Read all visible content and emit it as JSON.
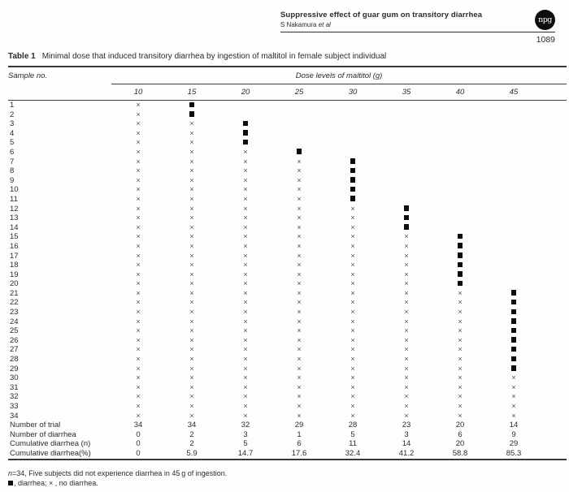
{
  "header": {
    "title": "Suppressive effect of guar gum on transitory diarrhea",
    "authors": "S Nakamura ",
    "authors_suffix": "et al",
    "logo_text": "npg",
    "page_number": "1089"
  },
  "table": {
    "label": "Table 1",
    "caption": "Minimal dose that induced transitory diarrhea by ingestion of maltitol in female subject individual",
    "col1_header": "Sample no.",
    "group_header": "Dose levels of maltitol (g)",
    "dose_headers": [
      "10",
      "15",
      "20",
      "25",
      "30",
      "35",
      "40",
      "45"
    ],
    "symbols": {
      "no_diarrhea": "×",
      "diarrhea": "■"
    },
    "rows": [
      {
        "no": "1",
        "marks": [
          "x",
          "d",
          "",
          "",
          "",
          "",
          "",
          ""
        ]
      },
      {
        "no": "2",
        "marks": [
          "x",
          "d",
          "",
          "",
          "",
          "",
          "",
          ""
        ]
      },
      {
        "no": "3",
        "marks": [
          "x",
          "x",
          "d",
          "",
          "",
          "",
          "",
          ""
        ]
      },
      {
        "no": "4",
        "marks": [
          "x",
          "x",
          "d",
          "",
          "",
          "",
          "",
          ""
        ]
      },
      {
        "no": "5",
        "marks": [
          "x",
          "x",
          "d",
          "",
          "",
          "",
          "",
          ""
        ]
      },
      {
        "no": "6",
        "marks": [
          "x",
          "x",
          "x",
          "d",
          "",
          "",
          "",
          ""
        ]
      },
      {
        "no": "7",
        "marks": [
          "x",
          "x",
          "x",
          "x",
          "d",
          "",
          "",
          ""
        ]
      },
      {
        "no": "8",
        "marks": [
          "x",
          "x",
          "x",
          "x",
          "d",
          "",
          "",
          ""
        ]
      },
      {
        "no": "9",
        "marks": [
          "x",
          "x",
          "x",
          "x",
          "d",
          "",
          "",
          ""
        ]
      },
      {
        "no": "10",
        "marks": [
          "x",
          "x",
          "x",
          "x",
          "d",
          "",
          "",
          ""
        ]
      },
      {
        "no": "11",
        "marks": [
          "x",
          "x",
          "x",
          "x",
          "d",
          "",
          "",
          ""
        ]
      },
      {
        "no": "12",
        "marks": [
          "x",
          "x",
          "x",
          "x",
          "x",
          "d",
          "",
          ""
        ]
      },
      {
        "no": "13",
        "marks": [
          "x",
          "x",
          "x",
          "x",
          "x",
          "d",
          "",
          ""
        ]
      },
      {
        "no": "14",
        "marks": [
          "x",
          "x",
          "x",
          "x",
          "x",
          "d",
          "",
          ""
        ]
      },
      {
        "no": "15",
        "marks": [
          "x",
          "x",
          "x",
          "x",
          "x",
          "x",
          "d",
          ""
        ]
      },
      {
        "no": "16",
        "marks": [
          "x",
          "x",
          "x",
          "x",
          "x",
          "x",
          "d",
          ""
        ]
      },
      {
        "no": "17",
        "marks": [
          "x",
          "x",
          "x",
          "x",
          "x",
          "x",
          "d",
          ""
        ]
      },
      {
        "no": "18",
        "marks": [
          "x",
          "x",
          "x",
          "x",
          "x",
          "x",
          "d",
          ""
        ]
      },
      {
        "no": "19",
        "marks": [
          "x",
          "x",
          "x",
          "x",
          "x",
          "x",
          "d",
          ""
        ]
      },
      {
        "no": "20",
        "marks": [
          "x",
          "x",
          "x",
          "x",
          "x",
          "x",
          "d",
          ""
        ]
      },
      {
        "no": "21",
        "marks": [
          "x",
          "x",
          "x",
          "x",
          "x",
          "x",
          "x",
          "d"
        ]
      },
      {
        "no": "22",
        "marks": [
          "x",
          "x",
          "x",
          "x",
          "x",
          "x",
          "x",
          "d"
        ]
      },
      {
        "no": "23",
        "marks": [
          "x",
          "x",
          "x",
          "x",
          "x",
          "x",
          "x",
          "d"
        ]
      },
      {
        "no": "24",
        "marks": [
          "x",
          "x",
          "x",
          "x",
          "x",
          "x",
          "x",
          "d"
        ]
      },
      {
        "no": "25",
        "marks": [
          "x",
          "x",
          "x",
          "x",
          "x",
          "x",
          "x",
          "d"
        ]
      },
      {
        "no": "26",
        "marks": [
          "x",
          "x",
          "x",
          "x",
          "x",
          "x",
          "x",
          "d"
        ]
      },
      {
        "no": "27",
        "marks": [
          "x",
          "x",
          "x",
          "x",
          "x",
          "x",
          "x",
          "d"
        ]
      },
      {
        "no": "28",
        "marks": [
          "x",
          "x",
          "x",
          "x",
          "x",
          "x",
          "x",
          "d"
        ]
      },
      {
        "no": "29",
        "marks": [
          "x",
          "x",
          "x",
          "x",
          "x",
          "x",
          "x",
          "d"
        ]
      },
      {
        "no": "30",
        "marks": [
          "x",
          "x",
          "x",
          "x",
          "x",
          "x",
          "x",
          "x"
        ]
      },
      {
        "no": "31",
        "marks": [
          "x",
          "x",
          "x",
          "x",
          "x",
          "x",
          "x",
          "x"
        ]
      },
      {
        "no": "32",
        "marks": [
          "x",
          "x",
          "x",
          "x",
          "x",
          "x",
          "x",
          "x"
        ]
      },
      {
        "no": "33",
        "marks": [
          "x",
          "x",
          "x",
          "x",
          "x",
          "x",
          "x",
          "x"
        ]
      },
      {
        "no": "34",
        "marks": [
          "x",
          "x",
          "x",
          "x",
          "x",
          "x",
          "x",
          "x"
        ]
      }
    ],
    "summary_rows": [
      {
        "label": "Number of trial",
        "values": [
          "34",
          "34",
          "32",
          "29",
          "28",
          "23",
          "20",
          "14"
        ]
      },
      {
        "label": "Number of diarrhea",
        "values": [
          "0",
          "2",
          "3",
          "1",
          "5",
          "3",
          "6",
          "9"
        ]
      },
      {
        "label": "Cumulative diarrhea (n)",
        "values": [
          "0",
          "2",
          "5",
          "6",
          "11",
          "14",
          "20",
          "29"
        ]
      },
      {
        "label": "Cumulative diarrhea(%)",
        "values": [
          "0",
          "5.9",
          "14.7",
          "17.6",
          "32.4",
          "41.2",
          "58.8",
          "85.3"
        ]
      }
    ],
    "footnote1": {
      "var": "n",
      "rest": "=34, Five subjects did not experience diarrhea in 45 g of ingestion."
    },
    "footnote2_rest": ", diarrhea; × , no diarrhea."
  }
}
